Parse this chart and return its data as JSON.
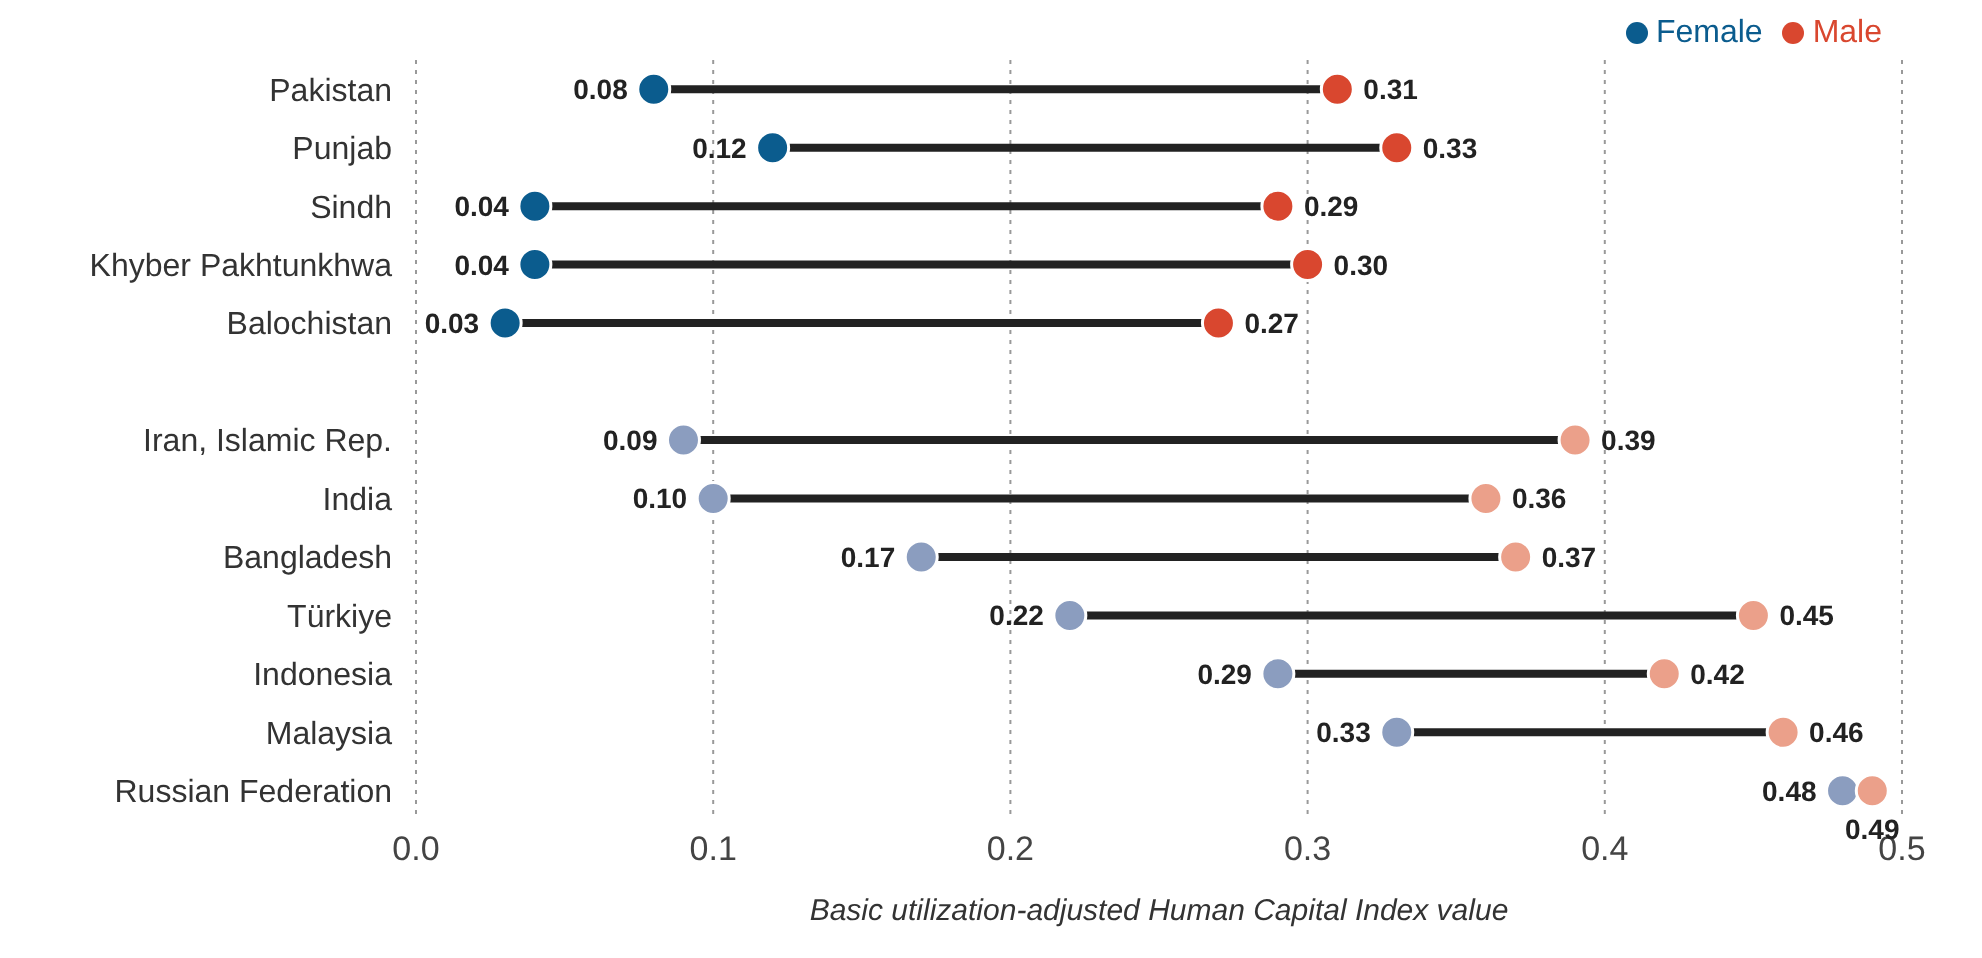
{
  "chart_data": {
    "type": "scatter",
    "orientation": "horizontal",
    "xlabel": "Basic utilization-adjusted Human Capital Index value",
    "categories": [
      "Pakistan",
      "Punjab",
      "Sindh",
      "Khyber Pakhtunkhwa",
      "Balochistan",
      null,
      "Iran, Islamic Rep.",
      "India",
      "Bangladesh",
      "Türkiye",
      "Indonesia",
      "Malaysia",
      "Russian Federation"
    ],
    "series": [
      {
        "name": "Female",
        "color": "#0b5c8e",
        "colors": [
          "#0b5c8e",
          "#0b5c8e",
          "#0b5c8e",
          "#0b5c8e",
          "#0b5c8e",
          null,
          "#8b9dbf",
          "#8b9dbf",
          "#8b9dbf",
          "#8b9dbf",
          "#8b9dbf",
          "#8b9dbf",
          "#8b9dbf"
        ],
        "values": [
          0.08,
          0.12,
          0.04,
          0.04,
          0.03,
          null,
          0.09,
          0.1,
          0.17,
          0.22,
          0.29,
          0.33,
          0.48
        ],
        "value_labels": [
          "0.08",
          "0.12",
          "0.04",
          "0.04",
          "0.03",
          null,
          "0.09",
          "0.10",
          "0.17",
          "0.22",
          "0.29",
          "0.33",
          "0.48"
        ]
      },
      {
        "name": "Male",
        "color": "#d9472f",
        "colors": [
          "#d9472f",
          "#d9472f",
          "#d9472f",
          "#d9472f",
          "#d9472f",
          null,
          "#eba08a",
          "#eba08a",
          "#eba08a",
          "#eba08a",
          "#eba08a",
          "#eba08a",
          "#eba08a"
        ],
        "values": [
          0.31,
          0.33,
          0.29,
          0.3,
          0.27,
          null,
          0.39,
          0.36,
          0.37,
          0.45,
          0.42,
          0.46,
          0.49
        ],
        "value_labels": [
          "0.31",
          "0.33",
          "0.29",
          "0.30",
          "0.27",
          null,
          "0.39",
          "0.36",
          "0.37",
          "0.45",
          "0.42",
          "0.46",
          "0.49"
        ]
      }
    ],
    "xlim": [
      0,
      0.5
    ],
    "xticks": [
      {
        "value": 0,
        "label": "0.0"
      },
      0.1,
      0.2,
      0.3,
      0.4,
      {
        "value": 0.5,
        "label": "0.5"
      }
    ],
    "grid": "x",
    "legend": "top right",
    "marker": "circle"
  }
}
